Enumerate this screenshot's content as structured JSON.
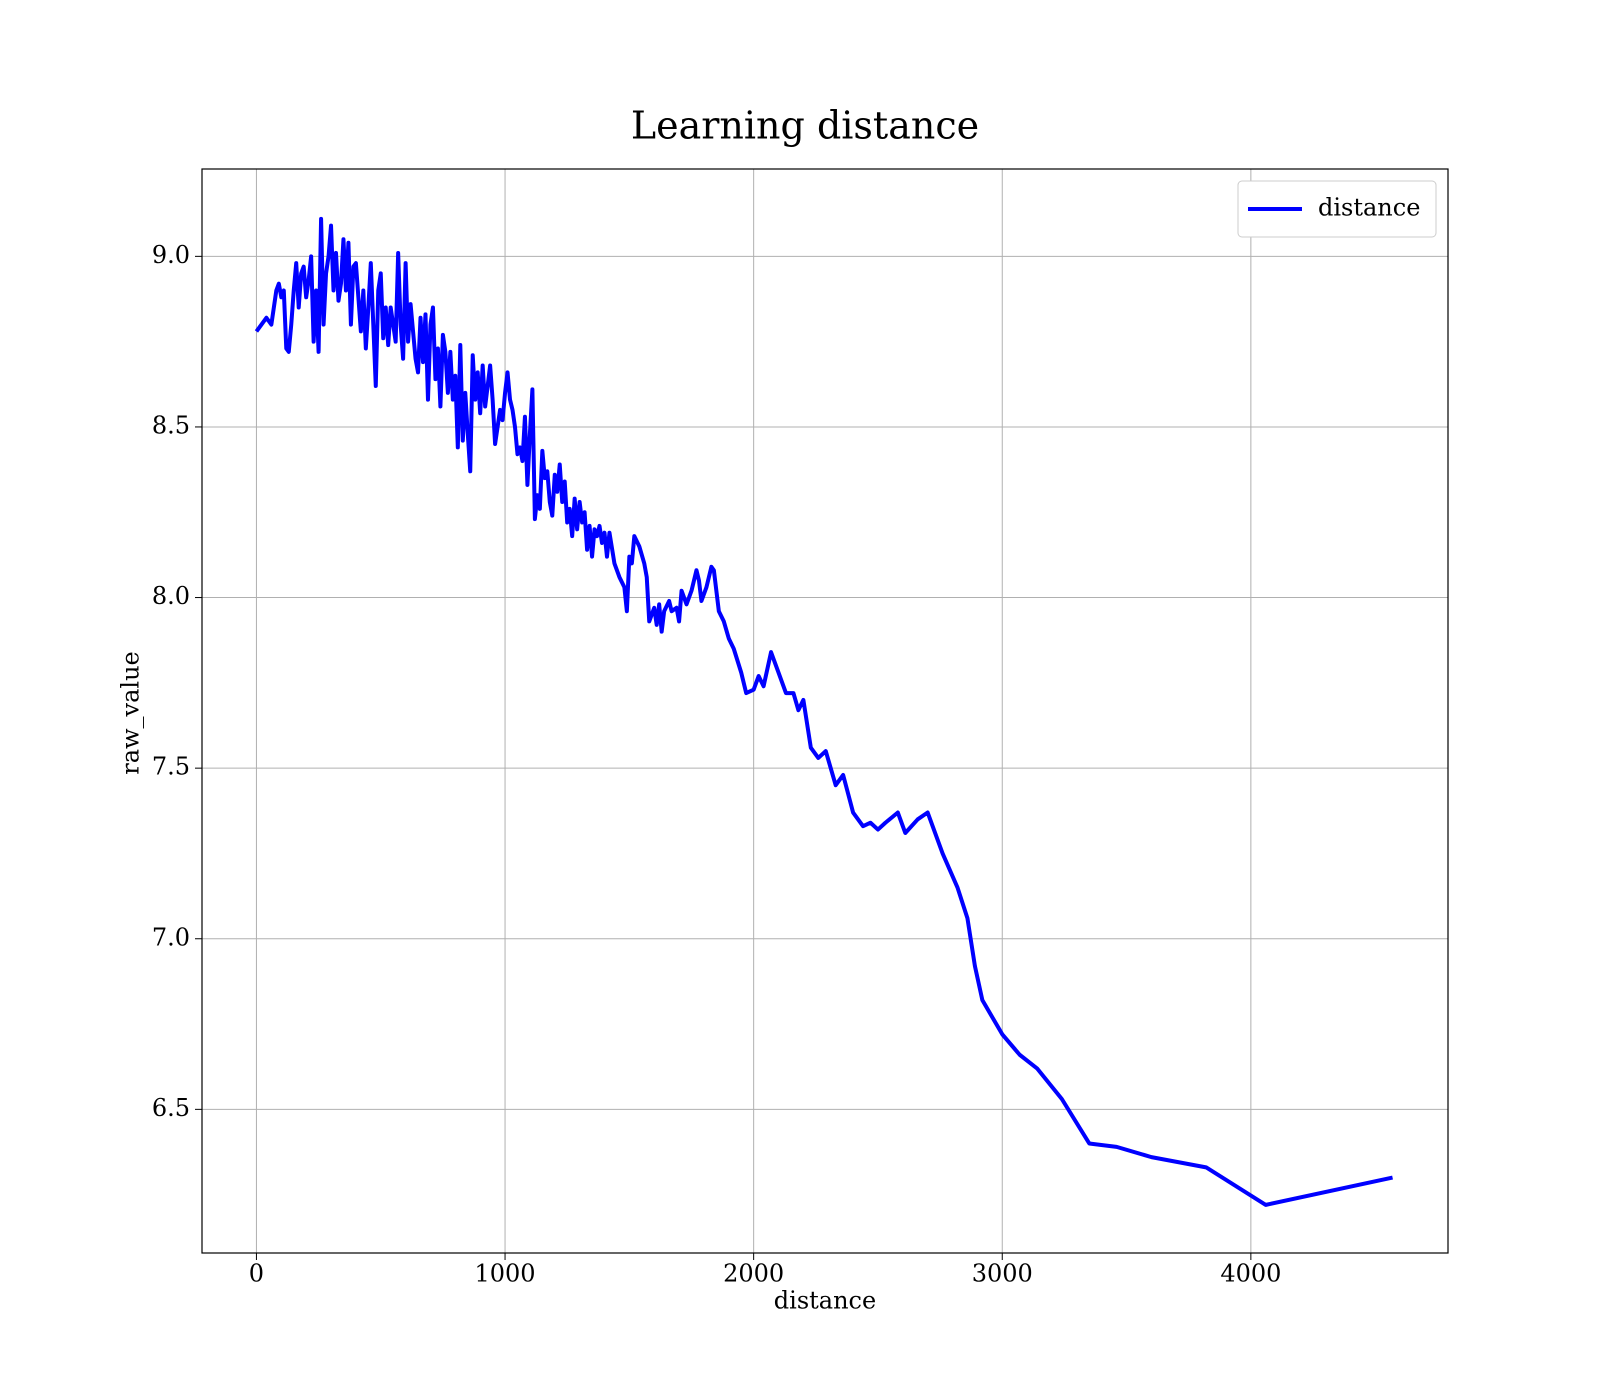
{
  "chart_data": {
    "type": "line",
    "title": "Learning distance",
    "xlabel": "distance",
    "ylabel": "raw_value",
    "x": [
      0,
      40,
      60,
      80,
      90,
      100,
      110,
      120,
      130,
      140,
      150,
      160,
      170,
      180,
      190,
      200,
      210,
      220,
      230,
      240,
      250,
      260,
      270,
      280,
      290,
      300,
      310,
      320,
      330,
      340,
      350,
      360,
      370,
      380,
      390,
      400,
      410,
      420,
      430,
      440,
      450,
      460,
      470,
      480,
      490,
      500,
      510,
      520,
      530,
      540,
      560,
      570,
      580,
      590,
      600,
      610,
      620,
      630,
      640,
      650,
      660,
      670,
      680,
      690,
      700,
      710,
      720,
      730,
      740,
      750,
      760,
      770,
      780,
      790,
      800,
      810,
      820,
      830,
      840,
      850,
      860,
      870,
      880,
      890,
      900,
      910,
      920,
      930,
      940,
      950,
      960,
      970,
      980,
      990,
      1000,
      1010,
      1020,
      1030,
      1040,
      1050,
      1060,
      1070,
      1080,
      1090,
      1100,
      1110,
      1120,
      1130,
      1140,
      1150,
      1160,
      1170,
      1180,
      1190,
      1200,
      1210,
      1220,
      1230,
      1240,
      1250,
      1260,
      1270,
      1280,
      1290,
      1300,
      1310,
      1320,
      1330,
      1340,
      1350,
      1360,
      1370,
      1380,
      1390,
      1400,
      1410,
      1420,
      1440,
      1460,
      1480,
      1490,
      1500,
      1510,
      1520,
      1540,
      1560,
      1570,
      1580,
      1600,
      1610,
      1620,
      1630,
      1640,
      1660,
      1670,
      1690,
      1700,
      1710,
      1730,
      1750,
      1770,
      1780,
      1790,
      1810,
      1830,
      1840,
      1860,
      1880,
      1900,
      1920,
      1950,
      1970,
      2000,
      2020,
      2040,
      2070,
      2100,
      2130,
      2160,
      2180,
      2200,
      2230,
      2260,
      2290,
      2330,
      2360,
      2400,
      2440,
      2470,
      2500,
      2530,
      2580,
      2610,
      2660,
      2700,
      2760,
      2820,
      2860,
      2890,
      2920,
      3000,
      3070,
      3140,
      3240,
      3350,
      3460,
      3600,
      3820,
      4060,
      4570
    ],
    "series": [
      {
        "name": "distance",
        "color": "#0000ff",
        "values": [
          8.78,
          8.82,
          8.8,
          8.9,
          8.92,
          8.88,
          8.9,
          8.73,
          8.72,
          8.8,
          8.9,
          8.98,
          8.85,
          8.95,
          8.97,
          8.88,
          8.93,
          9.0,
          8.75,
          8.9,
          8.72,
          9.11,
          8.8,
          8.95,
          9.0,
          9.09,
          8.9,
          9.01,
          8.87,
          8.92,
          9.05,
          8.9,
          9.04,
          8.8,
          8.97,
          8.98,
          8.88,
          8.78,
          8.9,
          8.73,
          8.85,
          8.98,
          8.8,
          8.62,
          8.9,
          8.95,
          8.76,
          8.85,
          8.74,
          8.85,
          8.75,
          9.01,
          8.8,
          8.7,
          8.98,
          8.75,
          8.86,
          8.78,
          8.7,
          8.66,
          8.82,
          8.69,
          8.83,
          8.58,
          8.8,
          8.85,
          8.64,
          8.73,
          8.56,
          8.77,
          8.72,
          8.6,
          8.72,
          8.58,
          8.65,
          8.44,
          8.74,
          8.46,
          8.6,
          8.48,
          8.37,
          8.71,
          8.58,
          8.66,
          8.54,
          8.68,
          8.56,
          8.62,
          8.68,
          8.58,
          8.45,
          8.5,
          8.55,
          8.52,
          8.6,
          8.66,
          8.58,
          8.55,
          8.5,
          8.42,
          8.44,
          8.4,
          8.53,
          8.33,
          8.48,
          8.61,
          8.23,
          8.3,
          8.26,
          8.43,
          8.35,
          8.37,
          8.28,
          8.24,
          8.36,
          8.31,
          8.39,
          8.28,
          8.34,
          8.22,
          8.26,
          8.18,
          8.29,
          8.2,
          8.28,
          8.22,
          8.25,
          8.14,
          8.21,
          8.12,
          8.2,
          8.18,
          8.21,
          8.16,
          8.19,
          8.12,
          8.19,
          8.1,
          8.06,
          8.03,
          7.96,
          8.12,
          8.1,
          8.18,
          8.15,
          8.1,
          8.06,
          7.93,
          7.97,
          7.92,
          7.98,
          7.9,
          7.96,
          7.99,
          7.96,
          7.97,
          7.93,
          8.02,
          7.98,
          8.02,
          8.08,
          8.05,
          7.99,
          8.03,
          8.09,
          8.08,
          7.96,
          7.93,
          7.88,
          7.85,
          7.78,
          7.72,
          7.73,
          7.77,
          7.74,
          7.84,
          7.78,
          7.72,
          7.72,
          7.67,
          7.7,
          7.56,
          7.53,
          7.55,
          7.45,
          7.48,
          7.37,
          7.33,
          7.34,
          7.32,
          7.34,
          7.37,
          7.31,
          7.35,
          7.37,
          7.25,
          7.15,
          7.06,
          6.92,
          6.82,
          6.72,
          6.66,
          6.62,
          6.53,
          6.4,
          6.39,
          6.36,
          6.33,
          6.22,
          6.3
        ]
      }
    ],
    "xlim": [
      -219,
      4793
    ],
    "ylim": [
      6.079,
      9.256
    ],
    "xticks": [
      0,
      1000,
      2000,
      3000,
      4000
    ],
    "yticks": [
      6.5,
      {
        "value": 7,
        "label": "7.0"
      },
      7.5,
      {
        "value": 8,
        "label": "8.0"
      },
      8.5,
      {
        "value": 9,
        "label": "9.0"
      }
    ],
    "grid": true,
    "legend": "upper right"
  }
}
